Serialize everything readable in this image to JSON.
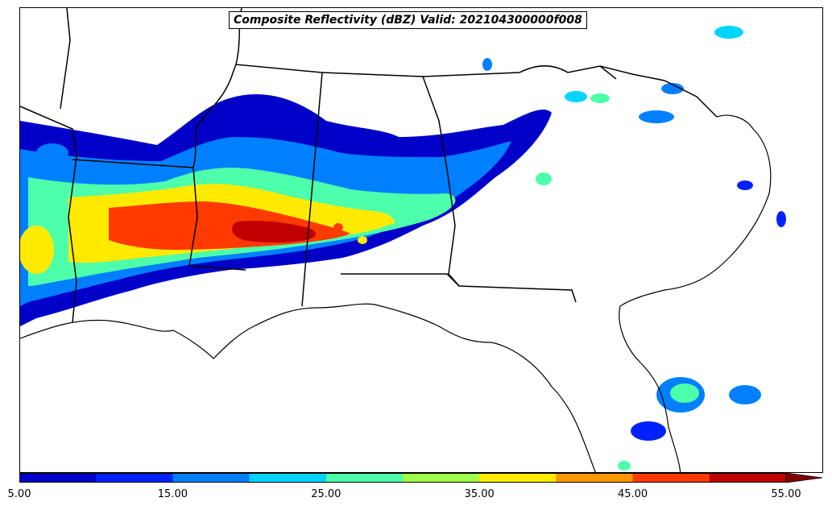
{
  "title": "Composite Reflectivity (dBZ) Valid: 202104300000f008",
  "colorbar": {
    "min": 5,
    "max": 55,
    "extend": "max",
    "bins": [
      {
        "from": 5,
        "to": 10,
        "color": "#0000c8"
      },
      {
        "from": 10,
        "to": 15,
        "color": "#0021ff"
      },
      {
        "from": 15,
        "to": 20,
        "color": "#0080ff"
      },
      {
        "from": 20,
        "to": 25,
        "color": "#00d4ff"
      },
      {
        "from": 25,
        "to": 30,
        "color": "#4dffaa"
      },
      {
        "from": 30,
        "to": 35,
        "color": "#a0ff4a"
      },
      {
        "from": 35,
        "to": 40,
        "color": "#ffea00"
      },
      {
        "from": 40,
        "to": 45,
        "color": "#ff9500"
      },
      {
        "from": 45,
        "to": 50,
        "color": "#ff3a00"
      },
      {
        "from": 50,
        "to": 55,
        "color": "#c00000"
      },
      {
        "from": 55,
        "to": 60,
        "color": "#800000"
      }
    ],
    "ticks": [
      "5.00",
      "15.00",
      "25.00",
      "35.00",
      "45.00",
      "55.00"
    ],
    "tick_values": [
      5,
      15,
      25,
      35,
      45,
      55
    ]
  },
  "map": {
    "region": "Southeastern United States",
    "features": [
      "state-borders",
      "coastline",
      "reflectivity-contours"
    ]
  }
}
